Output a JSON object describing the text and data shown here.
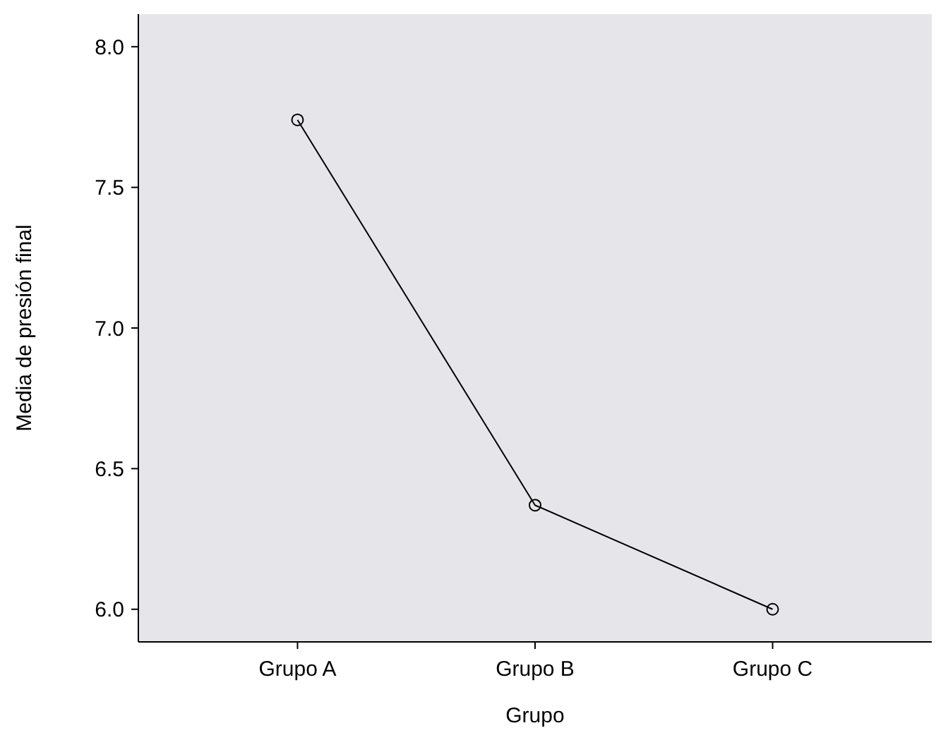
{
  "chart_data": {
    "type": "line",
    "xlabel": "Grupo",
    "ylabel": "Media de presión final",
    "categories": [
      "Grupo A",
      "Grupo B",
      "Grupo C"
    ],
    "series": [
      {
        "color": "#000000",
        "values": [
          7.74,
          6.37,
          6.0
        ]
      }
    ],
    "ylim": [
      5.884,
      8.116
    ],
    "yticks": [
      {
        "value": 6,
        "label": "6.0"
      },
      {
        "value": 6.5,
        "label": "6.5"
      },
      {
        "value": 7,
        "label": "7.0"
      },
      {
        "value": 7.5,
        "label": "7.5"
      },
      {
        "value": 8,
        "label": "8.0"
      }
    ],
    "grid": false,
    "marker": "circle",
    "line_style": "solid"
  }
}
